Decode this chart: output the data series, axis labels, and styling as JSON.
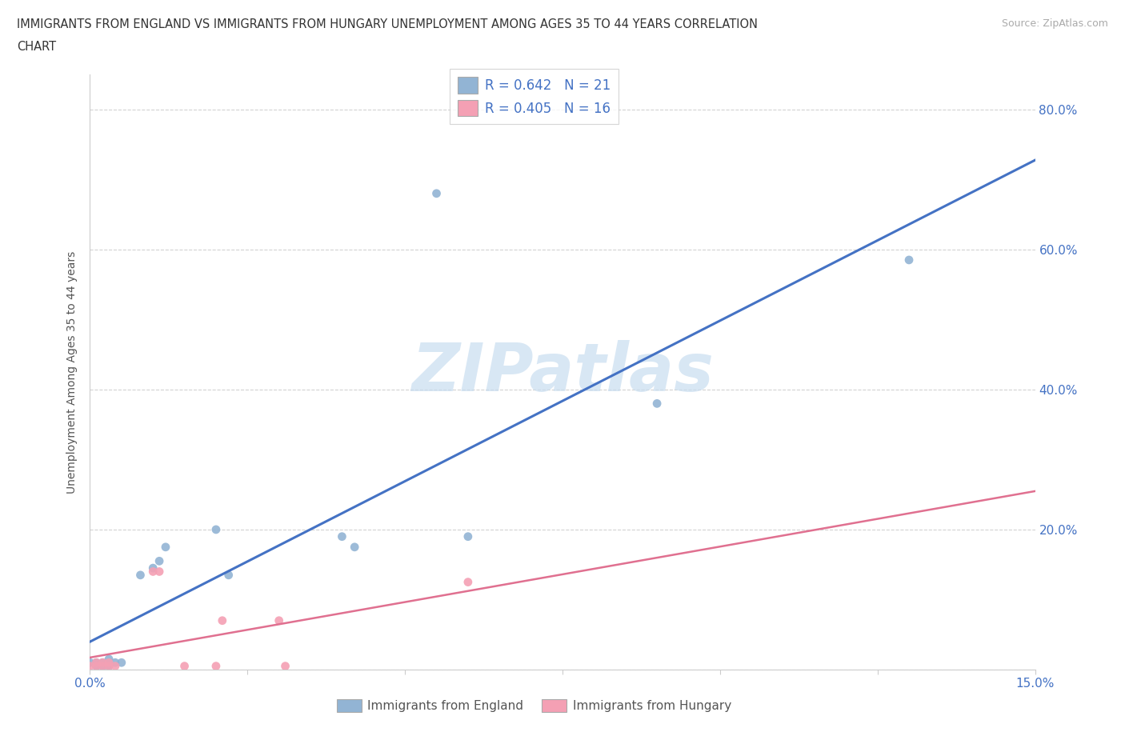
{
  "title_line1": "IMMIGRANTS FROM ENGLAND VS IMMIGRANTS FROM HUNGARY UNEMPLOYMENT AMONG AGES 35 TO 44 YEARS CORRELATION",
  "title_line2": "CHART",
  "source": "Source: ZipAtlas.com",
  "ylabel": "Unemployment Among Ages 35 to 44 years",
  "xlim": [
    0.0,
    0.15
  ],
  "ylim": [
    0.0,
    0.85
  ],
  "england_R": 0.642,
  "england_N": 21,
  "hungary_R": 0.405,
  "hungary_N": 16,
  "england_scatter_color": "#92b4d4",
  "hungary_scatter_color": "#f4a0b4",
  "england_line_color": "#4472c4",
  "hungary_line_color": "#e07090",
  "watermark_color": "#c8ddf0",
  "background_color": "#ffffff",
  "grid_color": "#cccccc",
  "england_x": [
    0.0,
    0.001,
    0.001,
    0.002,
    0.002,
    0.003,
    0.003,
    0.004,
    0.005,
    0.008,
    0.01,
    0.011,
    0.012,
    0.02,
    0.022,
    0.04,
    0.042,
    0.055,
    0.06,
    0.09,
    0.13
  ],
  "england_y": [
    0.01,
    0.005,
    0.01,
    0.005,
    0.01,
    0.005,
    0.015,
    0.01,
    0.01,
    0.135,
    0.145,
    0.155,
    0.175,
    0.2,
    0.135,
    0.19,
    0.175,
    0.68,
    0.19,
    0.38,
    0.585
  ],
  "hungary_x": [
    0.0,
    0.001,
    0.001,
    0.002,
    0.002,
    0.003,
    0.003,
    0.004,
    0.01,
    0.011,
    0.015,
    0.02,
    0.021,
    0.03,
    0.031,
    0.06
  ],
  "hungary_y": [
    0.005,
    0.01,
    0.005,
    0.005,
    0.01,
    0.005,
    0.01,
    0.005,
    0.14,
    0.14,
    0.005,
    0.005,
    0.07,
    0.07,
    0.005,
    0.125
  ]
}
